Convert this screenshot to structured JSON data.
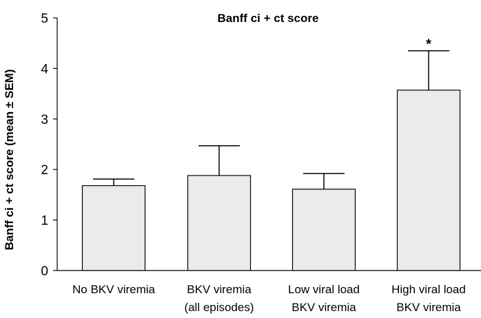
{
  "chart_data": {
    "type": "bar",
    "title": "Banff ci + ct score",
    "xlabel": "",
    "ylabel": "Banff ci + ct score (mean ± SEM)",
    "ylim": [
      0,
      5
    ],
    "yticks": [
      "0",
      "1",
      "2",
      "3",
      "4",
      "5"
    ],
    "grid": false,
    "categories": [
      [
        "No BKV viremia"
      ],
      [
        "BKV viremia",
        "(all episodes)"
      ],
      [
        "Low viral load",
        "BKV viremia"
      ],
      [
        "High viral load",
        "BKV viremia"
      ]
    ],
    "values": [
      1.68,
      1.88,
      1.61,
      3.57
    ],
    "errors": [
      0.13,
      0.59,
      0.31,
      0.78
    ],
    "annotations": [
      "",
      "",
      "",
      "*"
    ]
  },
  "colors": {
    "bar_fill": "#ebebeb",
    "bar_stroke": "#000000"
  }
}
